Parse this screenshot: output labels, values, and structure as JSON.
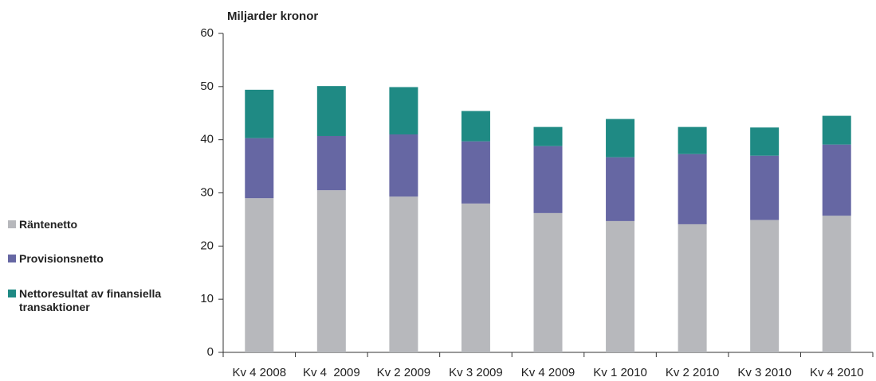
{
  "chart_data": {
    "type": "stacked_bar",
    "title": "Miljarder kronor",
    "categories": [
      "Kv 4 2008",
      "Kv 4  2009",
      "Kv 2 2009",
      "Kv 3 2009",
      "Kv 4 2009",
      "Kv 1 2010",
      "Kv 2 2010",
      "Kv 3 2010",
      "Kv 4 2010"
    ],
    "series": [
      {
        "name": "Räntenetto",
        "color": "#b7b8bc",
        "values": [
          29.0,
          30.5,
          29.3,
          28.0,
          26.2,
          24.7,
          24.1,
          24.9,
          25.7
        ]
      },
      {
        "name": "Provisionsnetto",
        "color": "#6667a3",
        "values": [
          11.3,
          10.2,
          11.7,
          11.7,
          12.6,
          12.0,
          13.2,
          12.1,
          13.4
        ]
      },
      {
        "name": "Nettoresultat av finansiella transaktioner",
        "color": "#1f8a84",
        "values": [
          9.1,
          9.4,
          8.9,
          5.7,
          3.6,
          7.2,
          5.1,
          5.3,
          5.4
        ]
      }
    ],
    "ylim": [
      0,
      60
    ],
    "yticks": [
      0,
      10,
      20,
      30,
      40,
      50,
      60
    ],
    "grid": false,
    "legend": "left"
  }
}
